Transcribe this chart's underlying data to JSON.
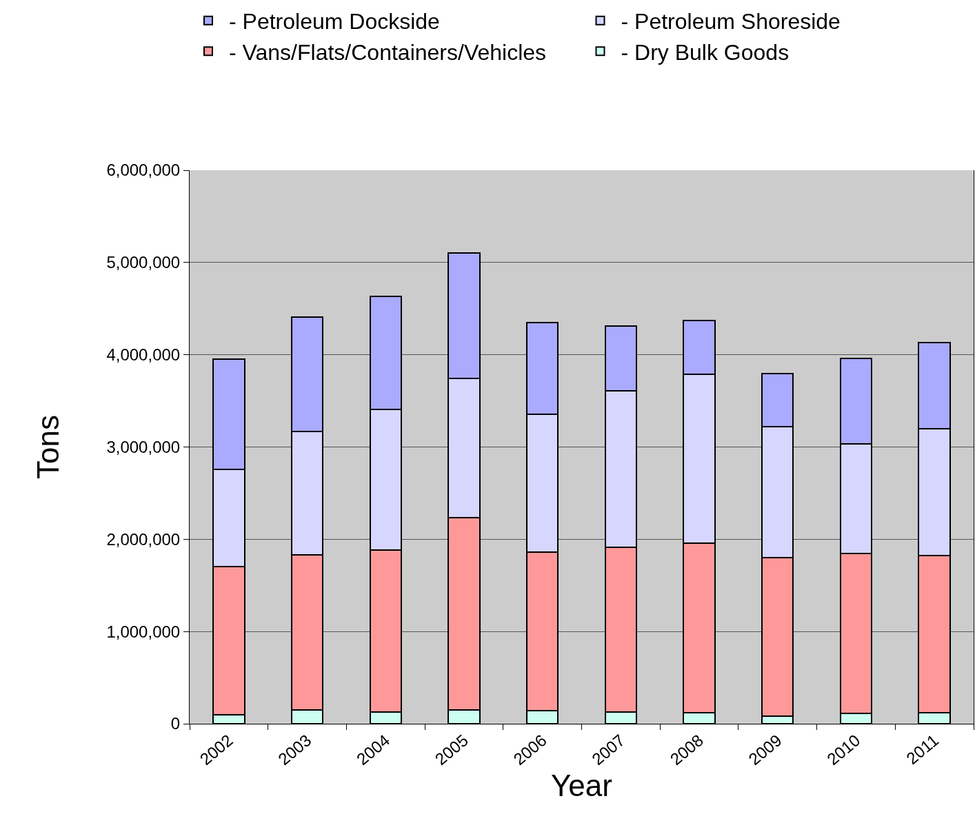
{
  "chart_data": {
    "type": "bar",
    "stacked": true,
    "xlabel": "Year",
    "ylabel": "Tons",
    "categories": [
      "2002",
      "2003",
      "2004",
      "2005",
      "2006",
      "2007",
      "2008",
      "2009",
      "2010",
      "2011"
    ],
    "series": [
      {
        "name": "- Dry Bulk Goods",
        "color": "#ccfff0",
        "values": [
          100000,
          150000,
          125000,
          150000,
          140000,
          125000,
          120000,
          85000,
          110000,
          120000
        ]
      },
      {
        "name": "- Vans/Flats/Containers/Vehicles",
        "color": "#ff9999",
        "values": [
          1600000,
          1680000,
          1760000,
          2085000,
          1720000,
          1785000,
          1840000,
          1715000,
          1735000,
          1705000
        ]
      },
      {
        "name": "- Petroleum Shoreside",
        "color": "#d6d6ff",
        "values": [
          1060000,
          1340000,
          1520000,
          1510000,
          1495000,
          1700000,
          1830000,
          1420000,
          1190000,
          1375000
        ]
      },
      {
        "name": "- Petroleum Dockside",
        "color": "#aaaaff",
        "values": [
          1190000,
          1240000,
          1225000,
          1355000,
          990000,
          700000,
          580000,
          575000,
          925000,
          935000
        ]
      }
    ],
    "ylim": [
      0,
      6000000
    ],
    "yticks": [
      {
        "value": 0,
        "label": "0"
      },
      {
        "value": 1000000,
        "label": "1,000,000"
      },
      {
        "value": 2000000,
        "label": "2,000,000"
      },
      {
        "value": 3000000,
        "label": "3,000,000"
      },
      {
        "value": 4000000,
        "label": "4,000,000"
      },
      {
        "value": 5000000,
        "label": "5,000,000"
      },
      {
        "value": 6000000,
        "label": "6,000,000"
      }
    ],
    "grid": "y",
    "legend": "top"
  }
}
